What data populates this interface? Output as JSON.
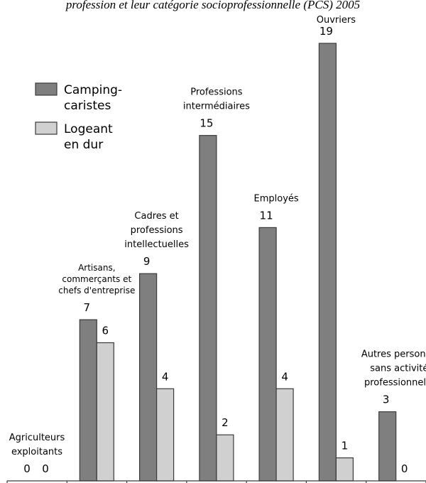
{
  "chart_data": {
    "type": "bar",
    "title": "profession et leur catégorie socioprofessionnelle (PCS) 2005",
    "categories": [
      "Agriculteurs exploitants",
      "Artisans, commerçants et chefs d'entreprise",
      "Cadres et professions intellectuelles",
      "Professions intermédiaires",
      "Employés",
      "Ouvriers",
      "Autres personnes sans activités professionnelles"
    ],
    "category_label_lines": [
      [
        "Agriculteurs",
        "exploitants"
      ],
      [
        "Artisans,",
        "commerçants et",
        "chefs d'entreprise"
      ],
      [
        "Cadres et",
        "professions",
        "intellectuelles"
      ],
      [
        "Professions",
        "intermédiaires"
      ],
      [
        "Employés"
      ],
      [
        "Ouvriers"
      ],
      [
        "Autres personnes",
        "sans activités",
        "professionnelles"
      ]
    ],
    "series": [
      {
        "name": "Camping-caristes",
        "legend_lines": [
          "Camping-",
          "caristes"
        ],
        "values": [
          0,
          7,
          9,
          15,
          11,
          19,
          3
        ],
        "color": "#7f7f7f"
      },
      {
        "name": "Logeant en dur",
        "legend_lines": [
          "Logeant",
          "en dur"
        ],
        "values": [
          0,
          6,
          4,
          2,
          4,
          1,
          0
        ],
        "color": "#d0d0d0"
      }
    ],
    "ylim": [
      0,
      19
    ],
    "xlabel": "",
    "ylabel": "",
    "grid": false,
    "legend": "top-left",
    "data_labels": true
  }
}
